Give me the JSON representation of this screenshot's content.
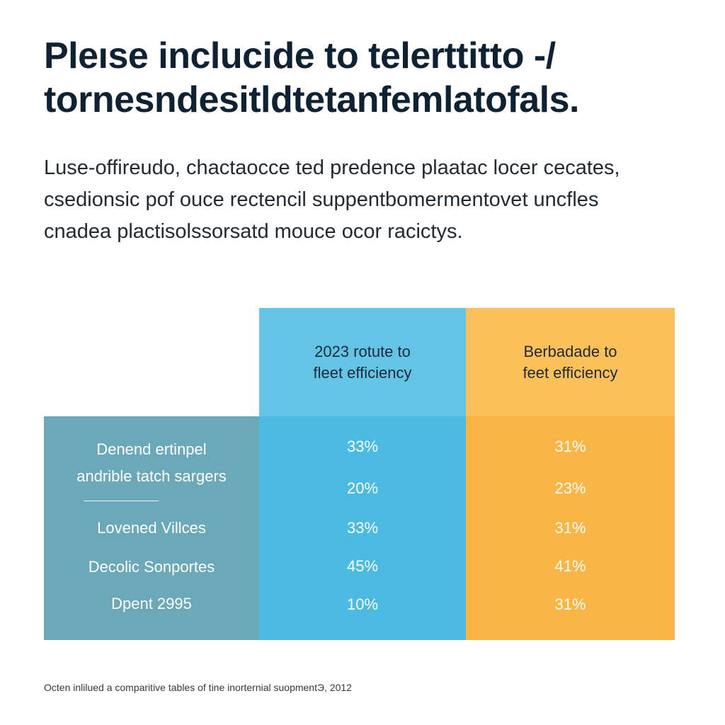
{
  "title": {
    "line1": "Pleıse inclucide to telerttitto -/",
    "line2": "tornesndesitldtetanfemlatofals."
  },
  "intro": {
    "line1": "Luse-offireudo, chactaocce ted predence plaatac locer cecates,",
    "line2": "csedionsic pof ouce rectencil suppentbomermentovet uncfles",
    "line3": "cnadea plactisolssorsatd mouce ocor racictys."
  },
  "chart_data": {
    "type": "table",
    "columns": [
      {
        "line1": "2023 rotute to",
        "line2": "fleet efficiency"
      },
      {
        "line1": "Berbadade to",
        "line2": "feet efficiency"
      }
    ],
    "rows": [
      {
        "label_line1": "Denend ertinpel",
        "label_line2": "andrible tatch sargers",
        "values": [
          "33%",
          "31%"
        ]
      },
      {
        "label": "",
        "values": [
          "20%",
          "23%"
        ]
      },
      {
        "label": "Lovened Villces",
        "values": [
          "33%",
          "31%"
        ]
      },
      {
        "label": "Decolic Sonportes",
        "values": [
          "45%",
          "41%"
        ]
      },
      {
        "label": "Dpent 2995",
        "values": [
          "10%",
          "31%"
        ]
      }
    ],
    "colors": {
      "label_column": "#6ba9b8",
      "column_1": "#4bbbe3",
      "column_2": "#fbb545"
    }
  },
  "footnote": "Octen inlilued a comparitive tables of tine inorternial suopmentЭ, 2012"
}
